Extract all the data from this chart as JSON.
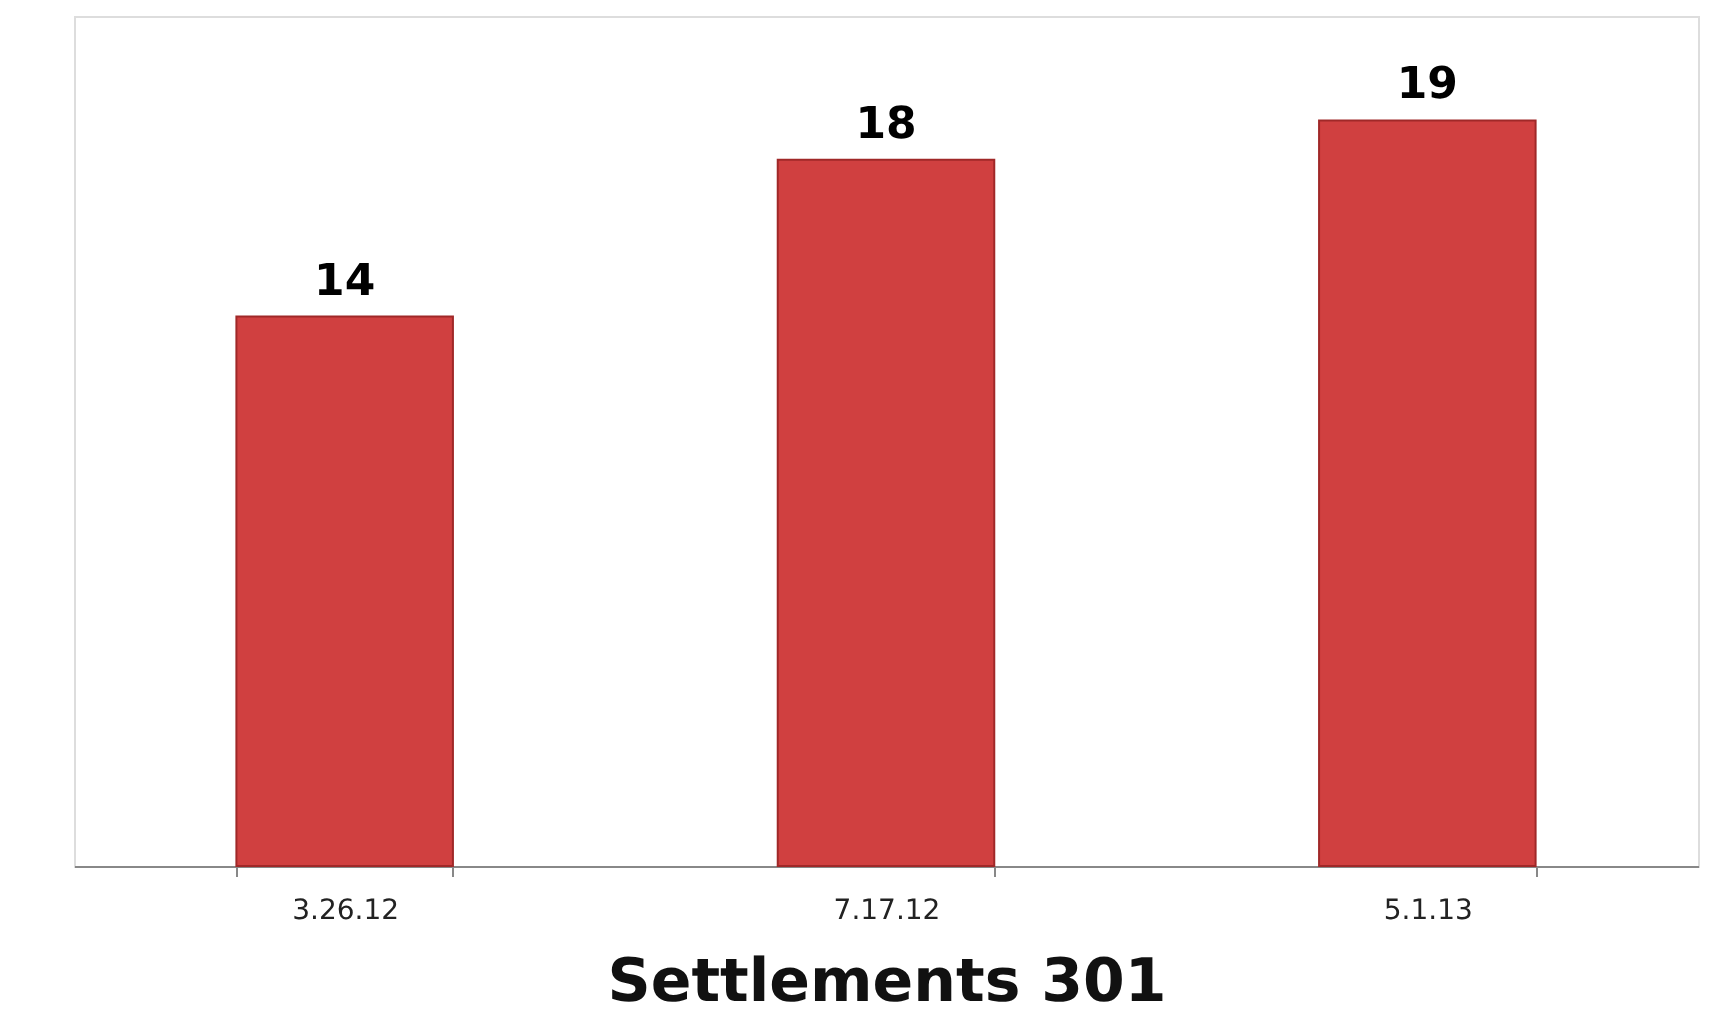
{
  "chart_data": {
    "type": "bar",
    "xlabel": "Settlements 301",
    "categories": [
      "3.26.12",
      "7.17.12",
      "5.1.13"
    ],
    "values": [
      14,
      18,
      19
    ],
    "color": "#d04040",
    "data_labels": true,
    "grid": false,
    "tick_labels": "x"
  }
}
